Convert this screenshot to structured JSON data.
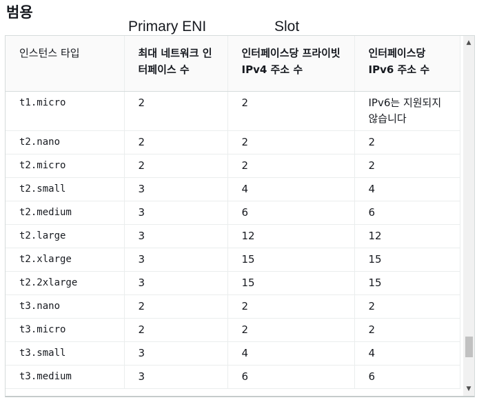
{
  "section_title": "범용",
  "overlay": {
    "primary_label": "Primary ENI",
    "slot_label": "Slot"
  },
  "table": {
    "headers": [
      "인스턴스 타입",
      "최대 네트워크 인터페이스 수",
      "인터페이스당 프라이빗 IPv4 주소 수",
      "인터페이스당 IPv6 주소 수"
    ],
    "rows": [
      [
        "t1.micro",
        "2",
        "2",
        "IPv6는 지원되지 않습니다"
      ],
      [
        "t2.nano",
        "2",
        "2",
        "2"
      ],
      [
        "t2.micro",
        "2",
        "2",
        "2"
      ],
      [
        "t2.small",
        "3",
        "4",
        "4"
      ],
      [
        "t2.medium",
        "3",
        "6",
        "6"
      ],
      [
        "t2.large",
        "3",
        "12",
        "12"
      ],
      [
        "t2.xlarge",
        "3",
        "15",
        "15"
      ],
      [
        "t2.2xlarge",
        "3",
        "15",
        "15"
      ],
      [
        "t3.nano",
        "2",
        "2",
        "2"
      ],
      [
        "t3.micro",
        "2",
        "2",
        "2"
      ],
      [
        "t3.small",
        "3",
        "4",
        "4"
      ],
      [
        "t3.medium",
        "3",
        "6",
        "6"
      ]
    ]
  },
  "scrollbar": {
    "up_icon": "▲",
    "down_icon": "▼",
    "position": 0.88
  }
}
